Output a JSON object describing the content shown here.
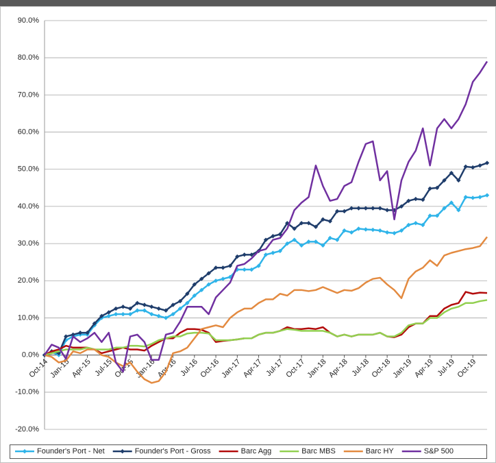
{
  "chart_data": {
    "type": "line",
    "categories": [
      "Oct-14",
      null,
      null,
      "Jan-15",
      null,
      null,
      "Apr-15",
      null,
      null,
      "Jul-15",
      null,
      null,
      "Oct-15",
      null,
      null,
      "Jan-16",
      null,
      null,
      "Apr-16",
      null,
      null,
      "Jul-16",
      null,
      null,
      "Oct-16",
      null,
      null,
      "Jan-17",
      null,
      null,
      "Apr-17",
      null,
      null,
      "Jul-17",
      null,
      null,
      "Oct-17",
      null,
      null,
      "Jan-18",
      null,
      null,
      "Apr-18",
      null,
      null,
      "Jul-18",
      null,
      null,
      "Oct-18",
      null,
      null,
      "Jan-19",
      null,
      null,
      "Apr-19",
      null,
      null,
      "Jul-19",
      null,
      null,
      "Oct-19",
      null,
      null
    ],
    "series": [
      {
        "name": "Founder's Port - Net",
        "color": "#2fb4e9",
        "marker": "diamond",
        "values": [
          0,
          0.8,
          0,
          4,
          5,
          5.5,
          5.5,
          8,
          10,
          10.5,
          11,
          11,
          11,
          12,
          12,
          11,
          10.5,
          10,
          11,
          12.5,
          14,
          16,
          17.5,
          19,
          20,
          20.5,
          21,
          23,
          23,
          23,
          24,
          27,
          27.5,
          28,
          30,
          31,
          29.5,
          30.5,
          30.5,
          29.5,
          31.5,
          31,
          33.5,
          33,
          34,
          33.8,
          33.7,
          33.5,
          33,
          32.8,
          33.5,
          35,
          35.5,
          35,
          37.5,
          37.5,
          39.5,
          41,
          39,
          42.5,
          42.3,
          42.5,
          43
        ]
      },
      {
        "name": "Founder's Port - Gross",
        "color": "#1f3d6b",
        "marker": "diamond",
        "values": [
          0,
          1,
          0.5,
          5,
          5.5,
          6,
          6,
          8.5,
          10.5,
          11.5,
          12.5,
          13,
          12.5,
          14,
          13.5,
          13,
          12.5,
          12,
          13.5,
          14.5,
          16.5,
          19,
          20.5,
          22,
          23.5,
          23.5,
          24,
          26.5,
          27,
          27,
          28,
          31,
          32,
          32.5,
          35.5,
          34,
          35.5,
          35.5,
          34.5,
          36.5,
          36,
          38.7,
          38.7,
          39.5,
          39.5,
          39.5,
          39.5,
          39.5,
          39,
          39,
          40,
          41.5,
          42,
          41.8,
          44.8,
          45,
          47,
          49,
          47,
          50.7,
          50.5,
          51,
          51.7
        ]
      },
      {
        "name": "Barc Agg",
        "color": "#b30c0c",
        "marker": "none",
        "values": [
          0,
          1,
          1.5,
          2.5,
          2,
          2,
          2,
          1.5,
          0.5,
          1,
          1.5,
          2,
          1.5,
          1.5,
          1.2,
          2.5,
          3.5,
          4.5,
          4.5,
          6,
          7,
          7,
          6.8,
          6,
          3.5,
          3.8,
          4,
          4.2,
          4.5,
          4.5,
          5.5,
          6,
          6,
          6.5,
          7.5,
          7,
          7,
          7.2,
          7,
          7.5,
          6,
          5,
          5.5,
          5,
          5.5,
          5.5,
          5.5,
          6,
          5,
          4.8,
          5.5,
          7.5,
          8.5,
          8.5,
          10.5,
          10.5,
          12.5,
          13.5,
          14,
          17,
          16.5,
          16.8,
          16.7
        ]
      },
      {
        "name": "Barc MBS",
        "color": "#92d050",
        "marker": "none",
        "values": [
          0,
          0.5,
          1,
          1.5,
          1.5,
          1.5,
          2,
          1.5,
          1.5,
          1.5,
          2,
          2,
          2.5,
          2.5,
          2.3,
          3,
          4,
          4.5,
          5,
          5,
          5.8,
          6,
          6,
          5.8,
          4,
          4,
          4,
          4.2,
          4.5,
          4.5,
          5.5,
          6,
          6,
          6.5,
          7,
          6.8,
          6.5,
          6.5,
          6.5,
          6.5,
          6,
          5,
          5.5,
          5,
          5.5,
          5.5,
          5.5,
          6,
          5,
          5,
          6,
          8,
          8.5,
          8.5,
          10,
          10,
          11.5,
          12.5,
          13,
          14,
          14,
          14.5,
          14.8
        ]
      },
      {
        "name": "Barc HY",
        "color": "#e38a40",
        "marker": "none",
        "values": [
          0,
          -0.5,
          -2,
          -1.5,
          1,
          0.5,
          1.5,
          1.5,
          0,
          -0.5,
          -2,
          -3,
          -2,
          -4.5,
          -6.5,
          -7.5,
          -7,
          -4.5,
          0.5,
          1,
          2,
          4.5,
          7,
          7.5,
          8,
          7.5,
          10,
          11.5,
          12.5,
          12.5,
          14,
          15,
          15,
          16.5,
          16,
          17.5,
          17.5,
          17.2,
          17.5,
          18.3,
          17.5,
          16.7,
          17.5,
          17.3,
          18,
          19.5,
          20.5,
          20.8,
          19,
          17.5,
          15.3,
          20.5,
          22.5,
          23.5,
          25.5,
          24,
          26.8,
          27.5,
          28,
          28.5,
          28.8,
          29.3,
          31.8
        ]
      },
      {
        "name": "S&P 500",
        "color": "#7030a0",
        "marker": "none",
        "values": [
          0,
          2.8,
          2,
          -1,
          5,
          3.5,
          4.5,
          6,
          3.5,
          6,
          -2,
          -4.5,
          5,
          5.5,
          3.5,
          -1.3,
          -1.3,
          5.5,
          6,
          9,
          13,
          13,
          13,
          11,
          15.5,
          17.5,
          19.5,
          24,
          24.5,
          26,
          28,
          28.5,
          31,
          31.5,
          34,
          39,
          41,
          42.5,
          51,
          45.5,
          41.5,
          42,
          45.5,
          46.5,
          52,
          56.8,
          57.5,
          47,
          49.5,
          36.5,
          47,
          52,
          55,
          61,
          51,
          61,
          63.5,
          61,
          63.5,
          67.5,
          73.5,
          76,
          79
        ]
      }
    ],
    "ylim": [
      -20,
      90
    ],
    "yticks": [
      {
        "value": -20,
        "label": "-20.0%"
      },
      {
        "value": -10,
        "label": "-10.0%"
      },
      {
        "value": 0,
        "label": "0.0%"
      },
      {
        "value": 10,
        "label": "10.0%"
      },
      {
        "value": 20,
        "label": "20.0%"
      },
      {
        "value": 30,
        "label": "30.0%"
      },
      {
        "value": 40,
        "label": "40.0%"
      },
      {
        "value": 50,
        "label": "50.0%"
      },
      {
        "value": 60,
        "label": "60.0%"
      },
      {
        "value": 70,
        "label": "70.0%"
      },
      {
        "value": 80,
        "label": "80.0%"
      },
      {
        "value": 90,
        "label": "90.0%"
      }
    ],
    "grid": true,
    "legend": "bottom"
  }
}
